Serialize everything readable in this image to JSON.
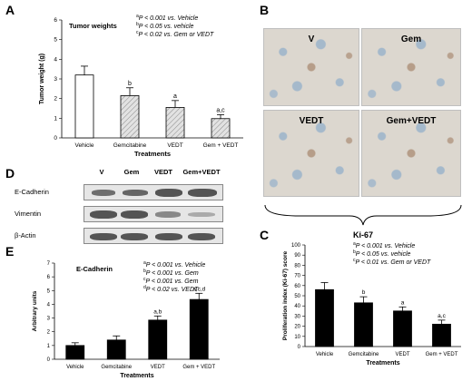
{
  "panels": {
    "A": "A",
    "B": "B",
    "C": "C",
    "D": "D",
    "E": "E"
  },
  "panelA": {
    "title": "Tumor weights",
    "stats": [
      {
        "sup": "a",
        "text": "P < 0.001 vs. Vehicle"
      },
      {
        "sup": "b",
        "text": "P < 0.05 vs. vehicle"
      },
      {
        "sup": "c",
        "text": "P < 0.02 vs. Gem or VEDT"
      }
    ]
  },
  "panelB": {
    "labels": [
      "V",
      "Gem",
      "VEDT",
      "Gem+VEDT"
    ],
    "caption": "Ki-67"
  },
  "panelC": {
    "stats": [
      {
        "sup": "a",
        "text": "P < 0.001 vs. Vehicle"
      },
      {
        "sup": "b",
        "text": "P < 0.05 vs. vehicle"
      },
      {
        "sup": "c",
        "text": "P < 0.01 vs. Gem or VEDT"
      }
    ]
  },
  "panelD": {
    "lanes": [
      "V",
      "Gem",
      "VEDT",
      "Gem+VEDT"
    ],
    "rows": [
      "E-Cadherin",
      "Vimentin",
      "β-Actin"
    ]
  },
  "panelE": {
    "title": "E-Cadherin",
    "stats": [
      {
        "sup": "a",
        "text": "P < 0.001 vs. Vehicle"
      },
      {
        "sup": "b",
        "text": "P < 0.001 vs. Gem"
      },
      {
        "sup": "c",
        "text": "P < 0.001 vs. Gem"
      },
      {
        "sup": "d",
        "text": "P < 0.02 vs. VEDT"
      }
    ]
  },
  "chart_data": [
    {
      "id": "A",
      "type": "bar",
      "title": "Tumor weights",
      "xlabel": "Treatments",
      "ylabel": "Tumor weight (g)",
      "categories": [
        "Vehicle",
        "Gemcitabine",
        "VEDT",
        "Gem + VEDT"
      ],
      "values": [
        3.2,
        2.15,
        1.55,
        0.98
      ],
      "errors": [
        0.45,
        0.4,
        0.35,
        0.2
      ],
      "annotations": [
        "",
        "b",
        "a",
        "a,c"
      ],
      "fills": [
        "#ffffff",
        "#d8d8d8",
        "#d8d8d8",
        "#d8d8d8"
      ],
      "hatched": [
        false,
        true,
        true,
        true
      ],
      "ylim": [
        0,
        6
      ],
      "yticks": [
        0,
        1,
        2,
        3,
        4,
        5,
        6
      ]
    },
    {
      "id": "C",
      "type": "bar",
      "xlabel": "Treatments",
      "ylabel": "Proliferation index (Ki-67) score",
      "categories": [
        "Vehicle",
        "Gemcitabine",
        "VEDT",
        "Gem + VEDT"
      ],
      "values": [
        56,
        43,
        35,
        22
      ],
      "errors": [
        7,
        6,
        4,
        4
      ],
      "annotations": [
        "",
        "b",
        "a",
        "a,c"
      ],
      "fills": [
        "#000000",
        "#000000",
        "#000000",
        "#000000"
      ],
      "hatched": [
        false,
        false,
        false,
        false
      ],
      "ylim": [
        0,
        100
      ],
      "yticks": [
        0,
        10,
        20,
        30,
        40,
        50,
        60,
        70,
        80,
        90,
        100
      ]
    },
    {
      "id": "E",
      "type": "bar",
      "xlabel": "Treatments",
      "ylabel": "Arbitrary units",
      "categories": [
        "Vehicle",
        "Gemcitabine",
        "VEDT",
        "Gem + VEDT"
      ],
      "values": [
        1.0,
        1.4,
        2.85,
        4.35
      ],
      "errors": [
        0.2,
        0.3,
        0.3,
        0.45
      ],
      "annotations": [
        "",
        "",
        "a,b",
        "a,c,d"
      ],
      "fills": [
        "#000000",
        "#000000",
        "#000000",
        "#000000"
      ],
      "hatched": [
        false,
        false,
        false,
        false
      ],
      "ylim": [
        0,
        7
      ],
      "yticks": [
        0,
        1,
        2,
        3,
        4,
        5,
        6,
        7
      ]
    }
  ]
}
